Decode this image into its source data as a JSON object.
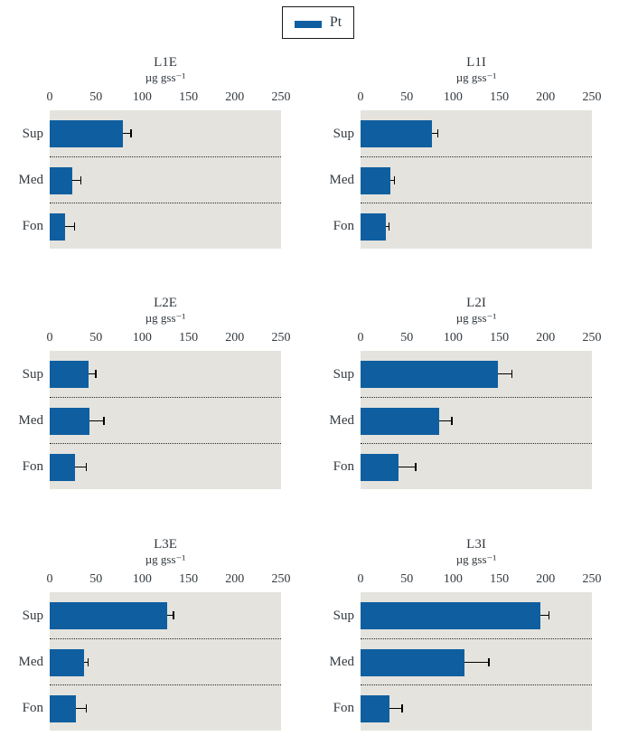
{
  "legend": {
    "label": "Pt",
    "swatch_color": "#0f5fa0"
  },
  "colors": {
    "bar": "#0f5fa0",
    "plot_background": "#e4e3de",
    "error_bar": "#000000",
    "text": "#333a40"
  },
  "chart_data": [
    {
      "type": "bar",
      "orientation": "horizontal",
      "title": "L1E",
      "subtitle": "µg gss⁻¹",
      "series_name": "Pt",
      "categories": [
        "Sup",
        "Med",
        "Fon"
      ],
      "values": [
        79,
        24,
        17
      ],
      "errors_plus": [
        8,
        9,
        9
      ],
      "xlim": [
        0,
        250
      ],
      "ticks": [
        0,
        50,
        100,
        150,
        200,
        250
      ],
      "grid": "dotted-row-separators",
      "legend_position": "top-center-shared"
    },
    {
      "type": "bar",
      "orientation": "horizontal",
      "title": "L1I",
      "subtitle": "µg gss⁻¹",
      "series_name": "Pt",
      "categories": [
        "Sup",
        "Med",
        "Fon"
      ],
      "values": [
        77,
        32,
        27
      ],
      "errors_plus": [
        6,
        4,
        3
      ],
      "xlim": [
        0,
        250
      ],
      "ticks": [
        0,
        50,
        100,
        150,
        200,
        250
      ],
      "grid": "dotted-row-separators",
      "legend_position": "top-center-shared"
    },
    {
      "type": "bar",
      "orientation": "horizontal",
      "title": "L2E",
      "subtitle": "µg gss⁻¹",
      "series_name": "Pt",
      "categories": [
        "Sup",
        "Med",
        "Fon"
      ],
      "values": [
        42,
        43,
        27
      ],
      "errors_plus": [
        7,
        15,
        12
      ],
      "xlim": [
        0,
        250
      ],
      "ticks": [
        0,
        50,
        100,
        150,
        200,
        250
      ],
      "grid": "dotted-row-separators",
      "legend_position": "top-center-shared"
    },
    {
      "type": "bar",
      "orientation": "horizontal",
      "title": "L2I",
      "subtitle": "µg gss⁻¹",
      "series_name": "Pt",
      "categories": [
        "Sup",
        "Med",
        "Fon"
      ],
      "values": [
        148,
        85,
        41
      ],
      "errors_plus": [
        15,
        13,
        18
      ],
      "xlim": [
        0,
        250
      ],
      "ticks": [
        0,
        50,
        100,
        150,
        200,
        250
      ],
      "grid": "dotted-row-separators",
      "legend_position": "top-center-shared"
    },
    {
      "type": "bar",
      "orientation": "horizontal",
      "title": "L3E",
      "subtitle": "µg gss⁻¹",
      "series_name": "Pt",
      "categories": [
        "Sup",
        "Med",
        "Fon"
      ],
      "values": [
        127,
        37,
        28
      ],
      "errors_plus": [
        6,
        4,
        11
      ],
      "xlim": [
        0,
        250
      ],
      "ticks": [
        0,
        50,
        100,
        150,
        200,
        250
      ],
      "grid": "dotted-row-separators",
      "legend_position": "top-center-shared"
    },
    {
      "type": "bar",
      "orientation": "horizontal",
      "title": "L3I",
      "subtitle": "µg gss⁻¹",
      "series_name": "Pt",
      "categories": [
        "Sup",
        "Med",
        "Fon"
      ],
      "values": [
        194,
        112,
        31
      ],
      "errors_plus": [
        9,
        26,
        13
      ],
      "xlim": [
        0,
        250
      ],
      "ticks": [
        0,
        50,
        100,
        150,
        200,
        250
      ],
      "grid": "dotted-row-separators",
      "legend_position": "top-center-shared"
    }
  ]
}
